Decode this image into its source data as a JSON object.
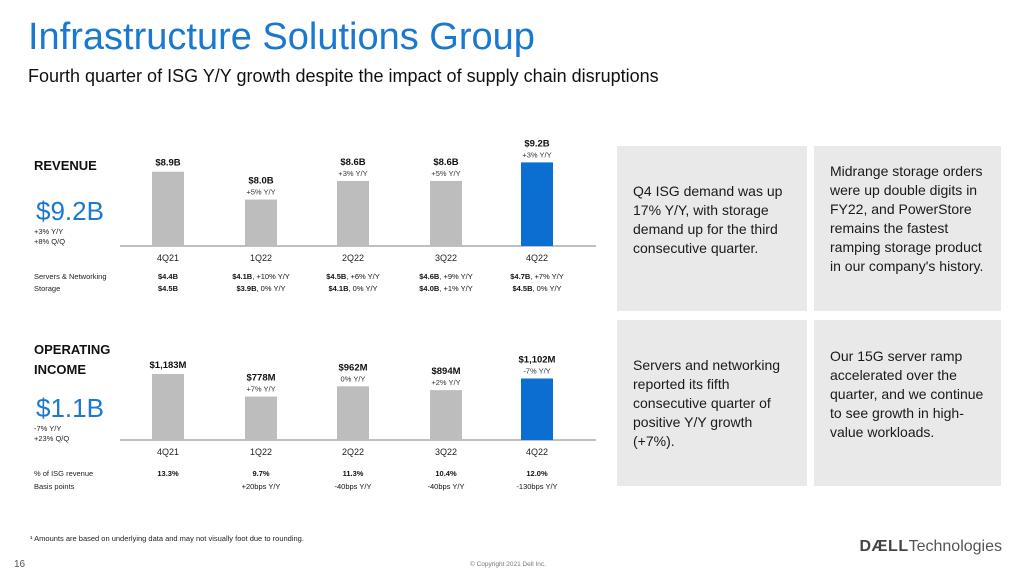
{
  "header": {
    "title": "Infrastructure Solutions Group",
    "subtitle": "Fourth quarter of ISG Y/Y growth despite the impact of supply chain disruptions"
  },
  "colors": {
    "accent_blue": "#0a6fd1",
    "bar_gray": "#bdbdbd",
    "box_gray": "#e9e9e9",
    "title_blue": "#1a78d0"
  },
  "revenue": {
    "label": "REVENUE",
    "big_value": "$9.2B",
    "yy": "+3% Y/Y",
    "qq": "+8% Q/Q",
    "rows": [
      {
        "label": "Servers & Networking",
        "cells": [
          {
            "amount": "$4.4B",
            "change": ""
          },
          {
            "amount": "$4.1B",
            "change": ", +10% Y/Y"
          },
          {
            "amount": "$4.5B",
            "change": ", +6% Y/Y"
          },
          {
            "amount": "$4.6B",
            "change": ", +9% Y/Y"
          },
          {
            "amount": "$4.7B",
            "change": ", +7% Y/Y"
          }
        ]
      },
      {
        "label": "Storage",
        "cells": [
          {
            "amount": "$4.5B",
            "change": ""
          },
          {
            "amount": "$3.9B",
            "change": ", 0% Y/Y"
          },
          {
            "amount": "$4.1B",
            "change": ", 0% Y/Y"
          },
          {
            "amount": "$4.0B",
            "change": ", +1% Y/Y"
          },
          {
            "amount": "$4.5B",
            "change": ", 0% Y/Y"
          }
        ]
      }
    ]
  },
  "operating_income": {
    "label_line1": "OPERATING",
    "label_line2": "INCOME",
    "big_value": "$1.1B",
    "yy": "-7% Y/Y",
    "qq": "+23% Q/Q",
    "rows": [
      {
        "label": "% of ISG revenue",
        "cells": [
          "13.3%",
          "9.7%",
          "11.3%",
          "10.4%",
          "12.0%"
        ],
        "bold": true
      },
      {
        "label": "Basis points",
        "cells": [
          "",
          "+20bps Y/Y",
          "-40bps Y/Y",
          "-40bps Y/Y",
          "-130bps Y/Y"
        ],
        "bold": false
      }
    ]
  },
  "chart_data": [
    {
      "type": "bar",
      "title": "REVENUE",
      "categories": [
        "4Q21",
        "1Q22",
        "2Q22",
        "3Q22",
        "4Q22"
      ],
      "values": [
        8.9,
        8.0,
        8.6,
        8.6,
        9.2
      ],
      "value_labels": [
        "$8.9B",
        "$8.0B",
        "$8.6B",
        "$8.6B",
        "$9.2B"
      ],
      "yy_labels": [
        "",
        "+5% Y/Y",
        "+3% Y/Y",
        "+5% Y/Y",
        "+3% Y/Y"
      ],
      "highlight_index": 4,
      "ylim": [
        6.5,
        9.6
      ]
    },
    {
      "type": "bar",
      "title": "OPERATING INCOME",
      "categories": [
        "4Q21",
        "1Q22",
        "2Q22",
        "3Q22",
        "4Q22"
      ],
      "values": [
        1183,
        778,
        962,
        894,
        1102
      ],
      "value_labels": [
        "$1,183M",
        "$778M",
        "$962M",
        "$894M",
        "$1,102M"
      ],
      "yy_labels": [
        "",
        "+7% Y/Y",
        "0% Y/Y",
        "+2% Y/Y",
        "-7% Y/Y"
      ],
      "highlight_index": 4,
      "ylim": [
        0,
        1290
      ]
    }
  ],
  "boxes": [
    "Q4 ISG demand was up 17% Y/Y, with storage demand up for the third consecutive quarter.",
    "Midrange storage orders were up double digits in FY22, and PowerStore remains the fastest ramping storage product in our company's history.",
    "Servers and networking reported its fifth consecutive quarter of positive Y/Y growth (+7%).",
    "Our 15G server ramp accelerated over the quarter, and we continue to see growth in high-value workloads."
  ],
  "footer": {
    "footnote": "¹ Amounts are based on underlying data and may not visually foot due to rounding.",
    "page_number": "16",
    "copyright": "© Copyright 2021 Dell Inc.",
    "brand_bold": "DÆLL",
    "brand_rest": "Technologies"
  }
}
